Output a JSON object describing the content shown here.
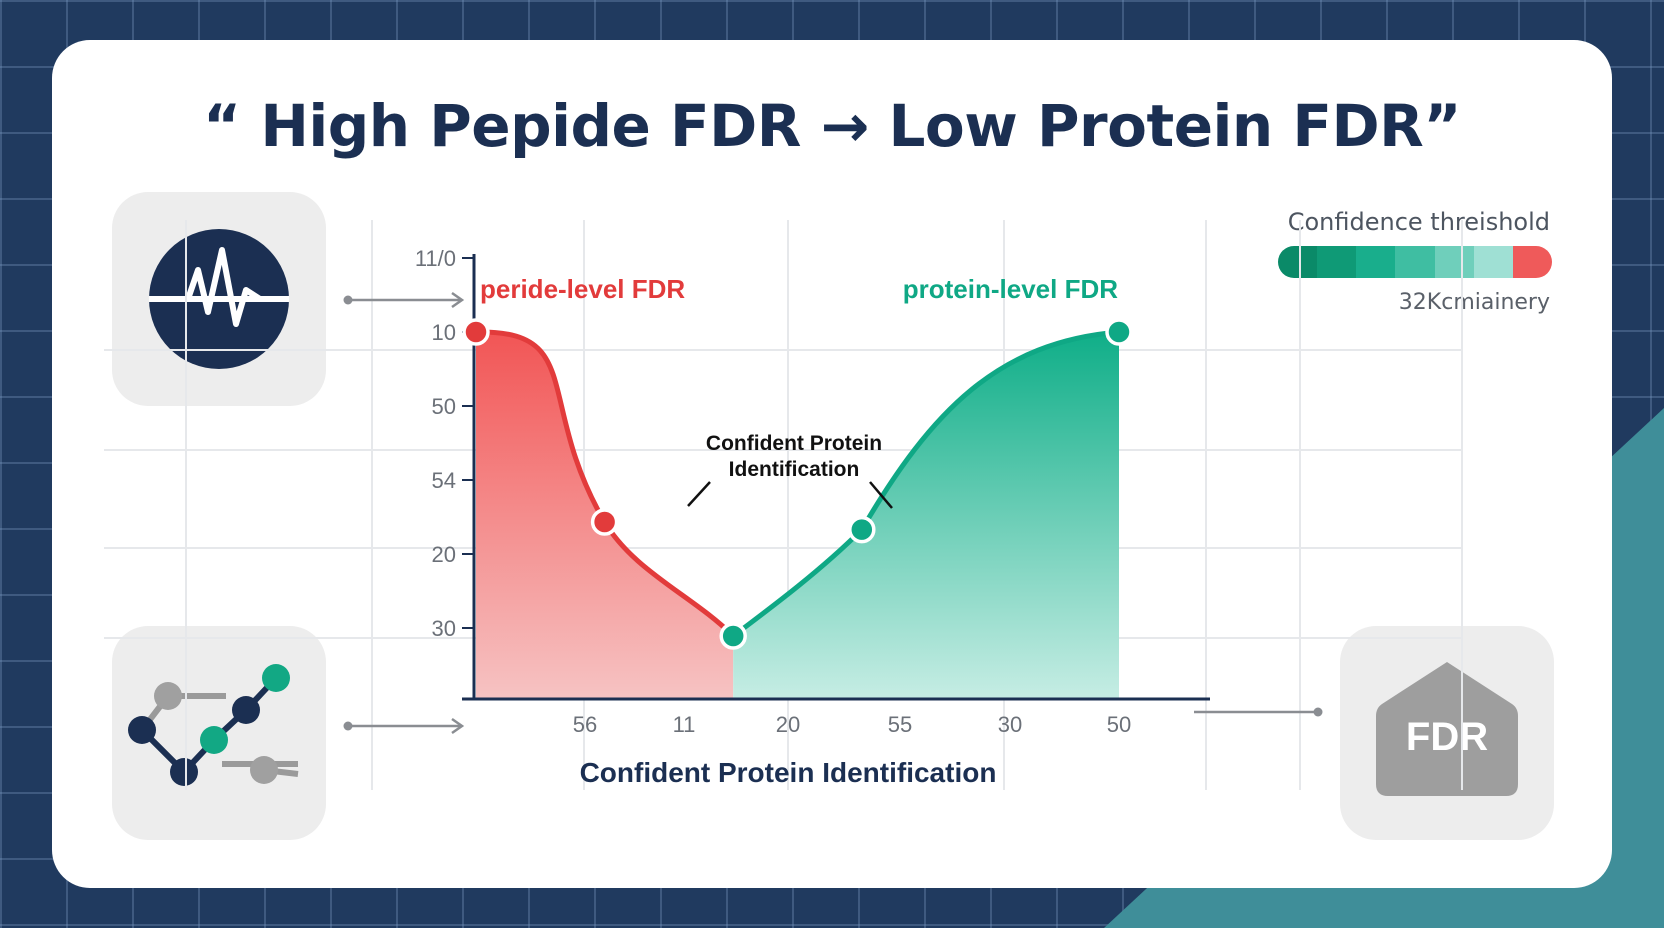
{
  "title": "“ High Pepide FDR → Low Protein FDR”",
  "threshold": {
    "label": "Confidence threishold",
    "sublabel": "32Kcmiainery",
    "colors": [
      "#0a8a68",
      "#0f9a76",
      "#19ae8c",
      "#3fbea2",
      "#6fcfbb",
      "#9fe0d4",
      "#ef5a5a"
    ]
  },
  "icons": {
    "top_left": "heartbeat-icon",
    "bottom_left": "network-nodes-icon",
    "bottom_right": "fdr-badge-icon",
    "badge_text": "FDR"
  },
  "chart_data": {
    "type": "area",
    "xlabel": "Confident Protein Identification",
    "x_ticks": [
      "56",
      "11",
      "20",
      "55",
      "30",
      "50"
    ],
    "y_ticks": [
      "11/0",
      "10",
      "50",
      "54",
      "20",
      "30"
    ],
    "annotation": "Confident Protein Identification",
    "series": [
      {
        "name": "peride-level FDR",
        "color": "#e23b3b",
        "points": [
          [
            0,
            5
          ],
          [
            1,
            2.5
          ],
          [
            2,
            1
          ]
        ]
      },
      {
        "name": "protein-level FDR",
        "color": "#0fa885",
        "points": [
          [
            2,
            1
          ],
          [
            3,
            2.4
          ],
          [
            5,
            5
          ]
        ]
      }
    ]
  }
}
